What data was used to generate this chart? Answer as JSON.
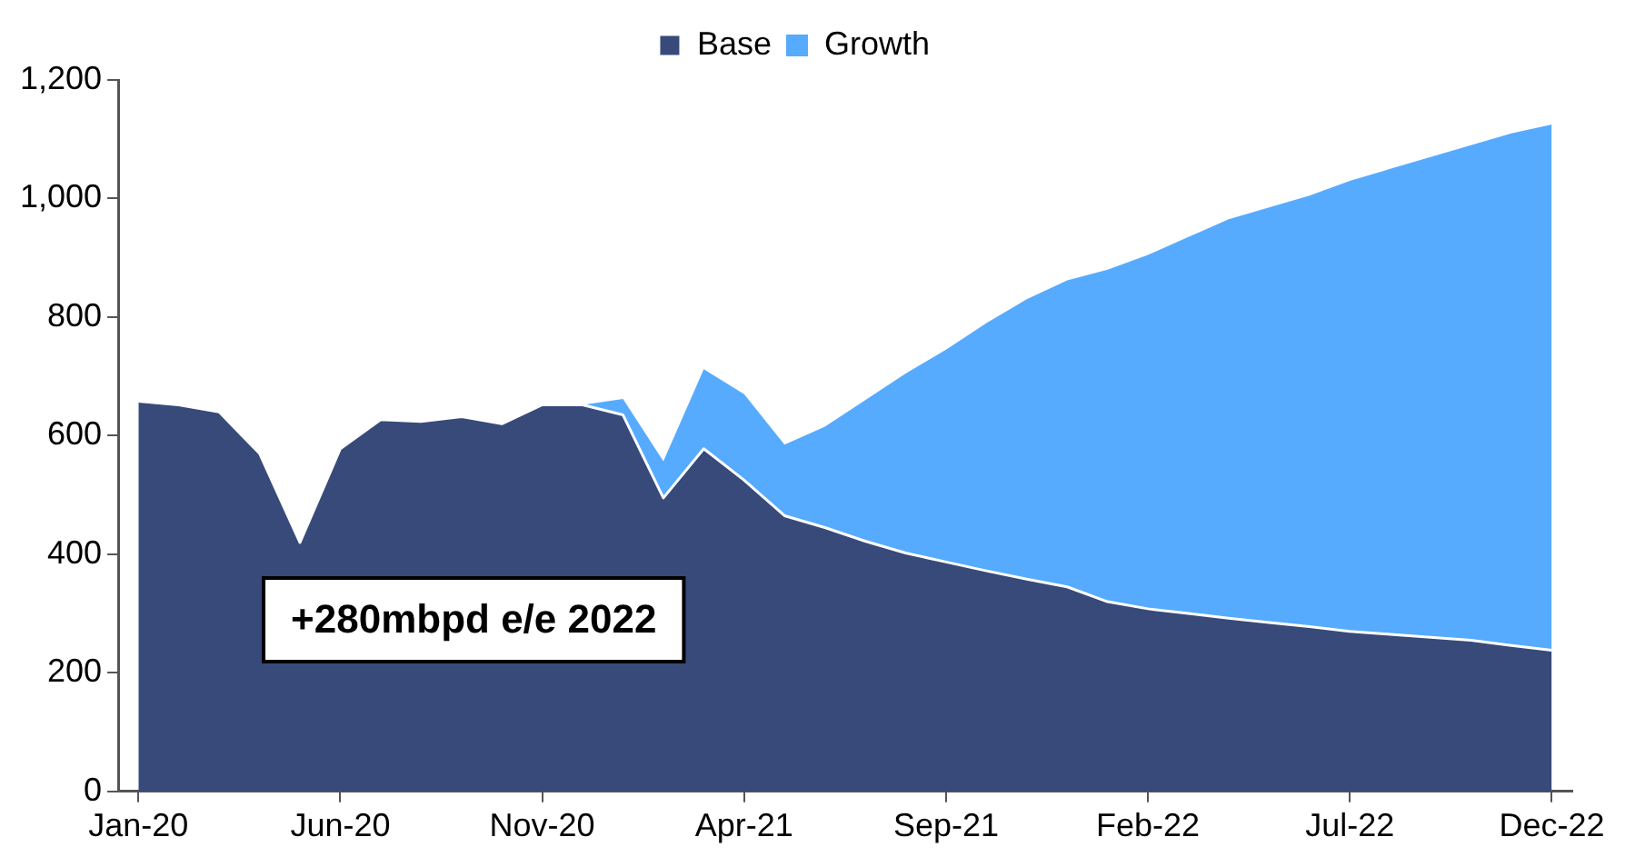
{
  "chart_data": {
    "type": "area",
    "stacked": true,
    "categories": [
      "Jan-20",
      null,
      null,
      null,
      null,
      "Jun-20",
      null,
      null,
      null,
      null,
      "Nov-20",
      null,
      null,
      null,
      null,
      "Apr-21",
      null,
      null,
      null,
      null,
      "Sep-21",
      null,
      null,
      null,
      null,
      "Feb-22",
      null,
      null,
      null,
      null,
      "Jul-22",
      null,
      null,
      null,
      null,
      "Dec-22"
    ],
    "series": [
      {
        "name": "Base",
        "color": "#374a7a",
        "values": [
          658,
          652,
          640,
          570,
          420,
          578,
          627,
          624,
          632,
          620,
          652,
          652,
          635,
          495,
          578,
          525,
          465,
          445,
          422,
          402,
          387,
          372,
          358,
          345,
          320,
          308,
          300,
          292,
          285,
          278,
          270,
          265,
          260,
          255,
          246,
          238
        ]
      },
      {
        "name": "Growth",
        "color": "#56abfe",
        "values": [
          0,
          0,
          0,
          0,
          0,
          0,
          0,
          0,
          0,
          0,
          0,
          0,
          27,
          62,
          134,
          145,
          120,
          170,
          238,
          303,
          358,
          418,
          472,
          517,
          560,
          597,
          635,
          673,
          700,
          727,
          760,
          785,
          810,
          835,
          864,
          887
        ]
      }
    ],
    "ylim": [
      0,
      1200
    ],
    "yticks": [
      0,
      {
        "value": 200,
        "label": "200"
      },
      {
        "value": 400,
        "label": "400"
      },
      {
        "value": 600,
        "label": "600"
      },
      {
        "value": 800,
        "label": "800"
      },
      {
        "value": 1000,
        "label": "1,000"
      },
      {
        "value": 1200,
        "label": "1,200"
      }
    ],
    "grid": false,
    "legend": "top",
    "annotations": [
      "+280mbpd e/e 2022"
    ]
  }
}
